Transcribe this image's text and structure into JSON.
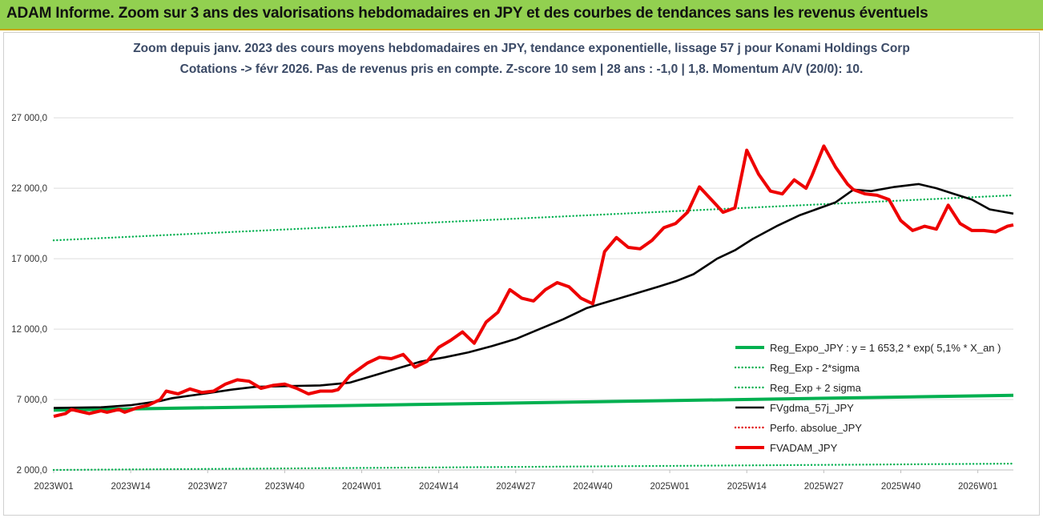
{
  "banner": {
    "title": "ADAM Informe. Zoom sur 3 ans des valorisations hebdomadaires en JPY et des courbes de tendances sans les revenus éventuels"
  },
  "colors": {
    "banner_bg": "#92d050",
    "reg_expo": "#00b050",
    "fvgdma": "#000000",
    "perfo": "#e00000",
    "fvadam": "#ee0000",
    "title_text": "#3b4a66"
  },
  "chart_data": {
    "type": "line",
    "title": "Zoom depuis janv. 2023 des cours moyens hebdomadaires en JPY, tendance exponentielle, lissage 57 j pour Konami Holdings Corp",
    "subtitle": "Cotations -> févr 2026. Pas de revenus pris en compte. Z-score 10 sem | 28 ans : -1,0 | 1,8. Momentum A/V (20/0): 10.",
    "xlabel": "",
    "ylabel": "",
    "ylim": [
      2000,
      29000
    ],
    "yticks": [
      2000,
      7000,
      12000,
      17000,
      22000,
      27000
    ],
    "ytick_labels": [
      "2 000,0",
      "7 000,0",
      "12 000,0",
      "17 000,0",
      "22 000,0",
      "27 000,0"
    ],
    "xlim": [
      0,
      162
    ],
    "xticks": [
      0,
      13,
      26,
      39,
      52,
      65,
      78,
      91,
      104,
      117,
      130,
      143,
      156
    ],
    "xtick_labels": [
      "2023W01",
      "2023W14",
      "2023W27",
      "2023W40",
      "2024W01",
      "2024W14",
      "2024W27",
      "2024W40",
      "2025W01",
      "2025W14",
      "2025W27",
      "2025W40",
      "2026W01"
    ],
    "grid": "horizontal",
    "legend_position": "bottom-right",
    "series": [
      {
        "name": "Reg_Expo_JPY : y = 1 653,2 * exp( 5,1% * X_an )",
        "style": "solid-thick",
        "color": "#00b050",
        "x": [
          0,
          162
        ],
        "y": [
          6250,
          7300
        ]
      },
      {
        "name": "Reg_Exp - 2*sigma",
        "style": "dotted",
        "color": "#00b050",
        "x": [
          0,
          162
        ],
        "y": [
          2000,
          2450
        ]
      },
      {
        "name": "Reg_Exp + 2 sigma",
        "style": "dotted",
        "color": "#00b050",
        "x": [
          0,
          162
        ],
        "y": [
          18300,
          21500
        ]
      },
      {
        "name": "FVgdma_57j_JPY",
        "style": "solid",
        "color": "#000000",
        "x": [
          0,
          8,
          13,
          18,
          20,
          26,
          30,
          34,
          39,
          45,
          50,
          54,
          58,
          62,
          66,
          70,
          74,
          78,
          82,
          86,
          90,
          94,
          98,
          102,
          105,
          108,
          112,
          115,
          118,
          122,
          126,
          130,
          132,
          135,
          138,
          142,
          146,
          149,
          152,
          155,
          158,
          162
        ],
        "y": [
          6400,
          6450,
          6600,
          6900,
          7100,
          7450,
          7700,
          7900,
          7950,
          8000,
          8200,
          8700,
          9200,
          9700,
          10000,
          10350,
          10800,
          11300,
          12000,
          12700,
          13500,
          14000,
          14500,
          15000,
          15400,
          15900,
          17000,
          17600,
          18400,
          19300,
          20100,
          20700,
          21000,
          21900,
          21800,
          22100,
          22300,
          22000,
          21600,
          21200,
          20500,
          20200
        ]
      },
      {
        "name": "Perfo. absolue_JPY",
        "style": "dotted",
        "color": "#e00000",
        "x": [],
        "y": []
      },
      {
        "name": "FVADAM_JPY",
        "style": "solid-thick",
        "color": "#ee0000",
        "x": [
          0,
          2,
          3,
          5,
          6,
          8,
          9,
          11,
          12,
          14,
          16,
          18,
          19,
          21,
          23,
          25,
          27,
          29,
          31,
          33,
          35,
          37,
          39,
          41,
          43,
          45,
          47,
          48,
          50,
          51,
          53,
          55,
          57,
          59,
          61,
          63,
          65,
          67,
          69,
          71,
          73,
          75,
          77,
          79,
          81,
          83,
          85,
          87,
          89,
          91,
          93,
          95,
          97,
          99,
          101,
          103,
          105,
          107,
          109,
          111,
          113,
          115,
          117,
          119,
          121,
          123,
          125,
          127,
          128,
          130,
          132,
          134,
          135,
          137,
          139,
          141,
          143,
          145,
          147,
          149,
          151,
          153,
          155,
          157,
          159,
          161,
          162
        ],
        "y": [
          5800,
          6000,
          6300,
          6100,
          6000,
          6200,
          6100,
          6300,
          6100,
          6400,
          6600,
          7000,
          7600,
          7400,
          7750,
          7500,
          7600,
          8100,
          8400,
          8300,
          7800,
          8000,
          8100,
          7800,
          7400,
          7600,
          7600,
          7700,
          8700,
          9000,
          9600,
          10000,
          9900,
          10200,
          9300,
          9700,
          10700,
          11200,
          11800,
          11000,
          12500,
          13200,
          14800,
          14200,
          14000,
          14800,
          15300,
          15000,
          14200,
          13800,
          17500,
          18500,
          17800,
          17700,
          18300,
          19200,
          19500,
          20300,
          22100,
          21200,
          20300,
          20600,
          24700,
          23000,
          21800,
          21600,
          22600,
          22000,
          22900,
          25000,
          23500,
          22300,
          21900,
          21600,
          21500,
          21200,
          19700,
          19000,
          19300,
          19100,
          20800,
          19500,
          19000,
          19000,
          18900,
          19300,
          19400
        ]
      }
    ]
  }
}
